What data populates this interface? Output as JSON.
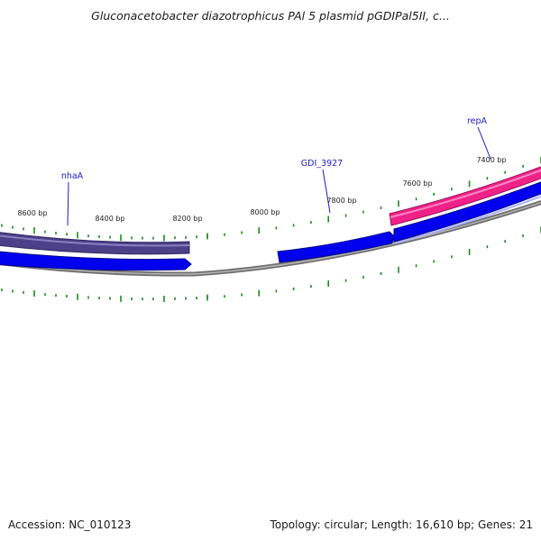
{
  "title": "Gluconacetobacter diazotrophicus PAl 5 plasmid pGDIPal5II, c...",
  "footer": {
    "accession": "Accession: NC_010123",
    "summary": "Topology: circular; Length: 16,610 bp; Genes: 21"
  },
  "colors": {
    "backbone": "#8c8c8c",
    "forward_gene": "#0000ee",
    "reverse_gene": "#4c4088",
    "repA_gene": "#ee2288",
    "tick": "#1a8a1a",
    "label": "#1a1acc"
  },
  "map": {
    "topology": "circular",
    "length_bp": 16610,
    "scale_labels": [
      "8600 bp",
      "8400 bp",
      "8200 bp",
      "8000 bp",
      "7800 bp",
      "7600 bp",
      "7400 bp"
    ],
    "genes": [
      {
        "name": "nhaA",
        "strand": "reverse",
        "track": "outer"
      },
      {
        "name": "GDI_3927",
        "strand": "forward",
        "track": "inner"
      },
      {
        "name": "repA",
        "strand": "reverse",
        "track": "outer"
      }
    ]
  }
}
